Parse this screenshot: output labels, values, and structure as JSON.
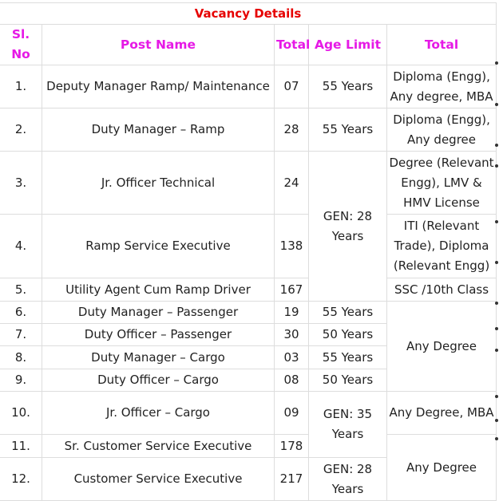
{
  "title": "Vacancy Details",
  "headers": [
    "Sl. No",
    "Post Name",
    "Total",
    "Age Limit",
    "Total"
  ],
  "rows": [
    {
      "sl": "1.",
      "post": "Deputy Manager Ramp/ Maintenance",
      "total": "07",
      "age": "55 Years",
      "qual": "Diploma (Engg), Any degree, MBA"
    },
    {
      "sl": "2.",
      "post": "Duty Manager – Ramp",
      "total": "28",
      "age": "55 Years",
      "qual": "Diploma (Engg), Any degree"
    },
    {
      "sl": "3.",
      "post": "Jr. Officer Technical",
      "total": "24",
      "age": "GEN: 28 Years",
      "qual": "Degree (Relevant Engg), LMV & HMV License"
    },
    {
      "sl": "4.",
      "post": "Ramp Service Executive",
      "total": "138",
      "qual": "ITI (Relevant Trade), Diploma (Relevant Engg)"
    },
    {
      "sl": "5.",
      "post": "Utility Agent Cum Ramp Driver",
      "total": "167",
      "qual": "SSC /10th Class"
    },
    {
      "sl": "6.",
      "post": "Duty Manager – Passenger",
      "total": "19",
      "age": "55 Years",
      "qual": "Any Degree"
    },
    {
      "sl": "7.",
      "post": "Duty Officer – Passenger",
      "total": "30",
      "age": "50 Years"
    },
    {
      "sl": "8.",
      "post": "Duty Manager – Cargo",
      "total": "03",
      "age": "55 Years"
    },
    {
      "sl": "9.",
      "post": "Duty Officer – Cargo",
      "total": "08",
      "age": "50 Years"
    },
    {
      "sl": "10.",
      "post": "Jr. Officer – Cargo",
      "total": "09",
      "age": "GEN: 35 Years",
      "qual": "Any Degree, MBA"
    },
    {
      "sl": "11.",
      "post": "Sr. Customer Service Executive",
      "total": "178",
      "qual": "Any Degree"
    },
    {
      "sl": "12.",
      "post": "Customer Service Executive",
      "total": "217",
      "age": "GEN: 28 Years"
    }
  ]
}
